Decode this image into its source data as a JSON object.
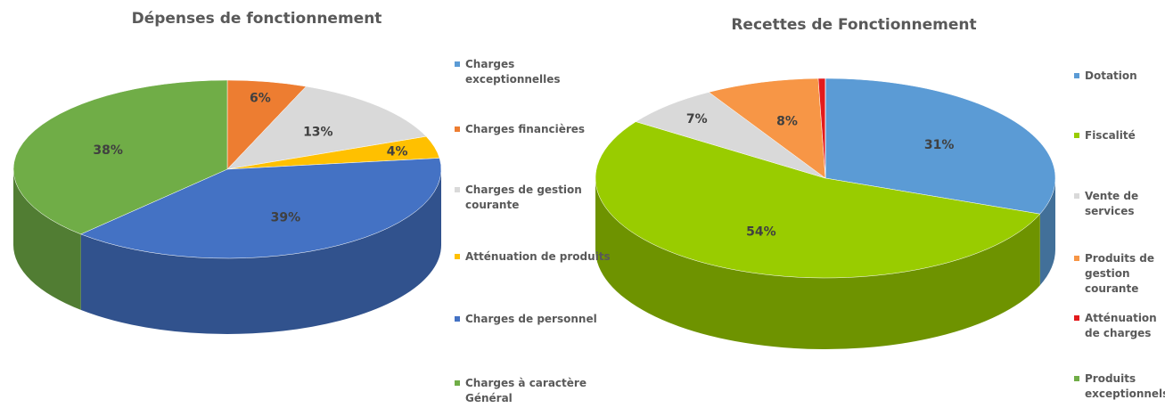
{
  "chart_data": [
    {
      "type": "pie",
      "title": "Dépenses de fonctionnement",
      "categories": [
        "Charges exceptionnelles",
        "Charges financières",
        "Charges de gestion courante",
        "Atténuation de produits",
        "Charges de personnel",
        "Charges à caractère Général"
      ],
      "values": [
        0,
        6,
        13,
        4,
        39,
        38
      ],
      "value_labels": [
        null,
        "6%",
        "13%",
        "4%",
        "39%",
        "38%"
      ],
      "colors": [
        "#5b9bd5",
        "#ed7d31",
        "#d9d9d9",
        "#ffc000",
        "#4472c4",
        "#70ad47"
      ]
    },
    {
      "type": "pie",
      "title": "Recettes de Fonctionnement",
      "categories": [
        "Dotation",
        "Fiscalité",
        "Vente de services",
        "Produits de gestion courante",
        "Atténuation de charges",
        "Produits exceptionnels"
      ],
      "values": [
        31,
        54,
        7,
        8,
        0.5,
        0
      ],
      "value_labels": [
        "31%",
        "54%",
        "7%",
        "8%",
        null,
        null
      ],
      "colors": [
        "#5b9bd5",
        "#99cc00",
        "#d9d9d9",
        "#f79646",
        "#e31a1c",
        "#70ad47"
      ]
    }
  ]
}
